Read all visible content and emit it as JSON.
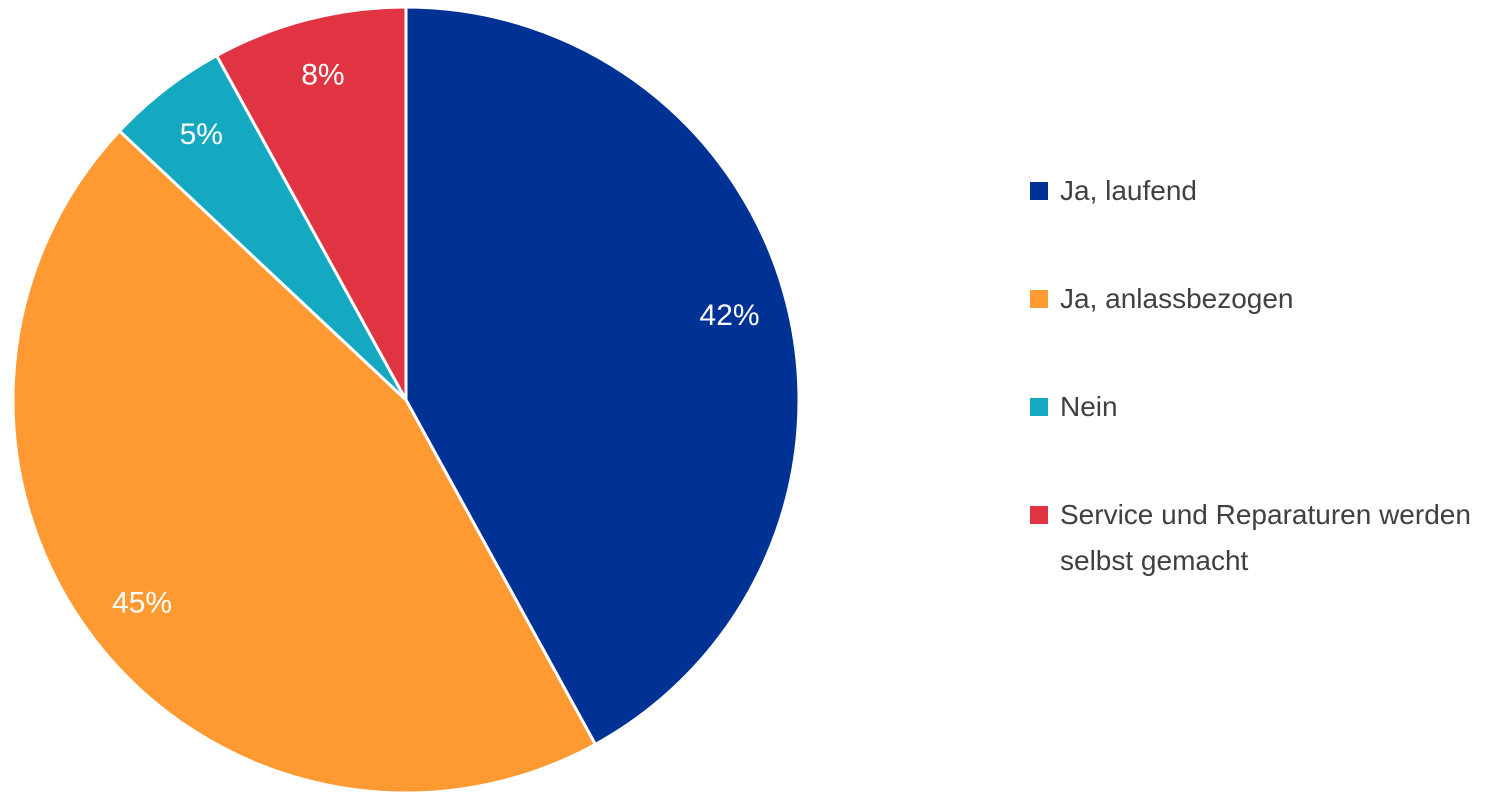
{
  "chart_data": {
    "type": "pie",
    "categories": [
      "Ja, laufend",
      "Ja, anlassbezogen",
      "Nein",
      "Service und Reparaturen werden selbst gemacht"
    ],
    "values": [
      42,
      45,
      5,
      8
    ],
    "value_labels": [
      "42%",
      "45%",
      "5%",
      "8%"
    ],
    "colors": [
      "#003296",
      "#ff9a33",
      "#14a9c0",
      "#e03443"
    ],
    "legend": "right"
  }
}
